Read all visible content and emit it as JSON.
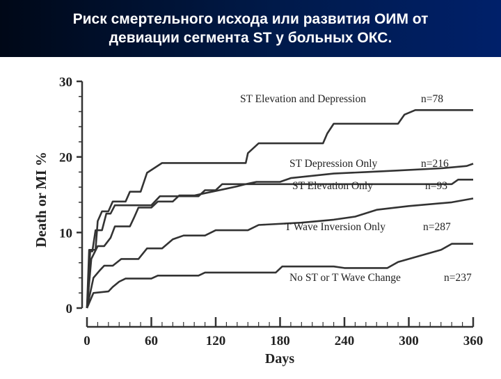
{
  "page": {
    "title_line1": "Риск смертельного исхода или развития ОИМ от",
    "title_line2": "девиации сегмента ST у больных ОКС."
  },
  "colors": {
    "header_bg": "#001a4a",
    "header_text": "#ffffff",
    "line": "#333333"
  },
  "chart_data": {
    "type": "line",
    "title": "",
    "xlabel": "Days",
    "ylabel": "Death or MI %",
    "xlim": [
      0,
      360
    ],
    "ylim": [
      0,
      30
    ],
    "xticks": [
      0,
      60,
      120,
      180,
      240,
      300,
      360
    ],
    "yticks": [
      0,
      10,
      20,
      30
    ],
    "xtick_labels": [
      "0",
      "60",
      "120",
      "180",
      "240",
      "300",
      "360"
    ],
    "ytick_labels": [
      "0",
      "10",
      "20",
      "30"
    ],
    "grid": false,
    "legend": "inline",
    "series": [
      {
        "name": "ST Elevation and Depression",
        "n": "n=78",
        "points": [
          [
            0,
            0
          ],
          [
            2,
            7.7
          ],
          [
            8,
            7.7
          ],
          [
            10,
            11.5
          ],
          [
            14,
            12.8
          ],
          [
            20,
            12.8
          ],
          [
            24,
            14.1
          ],
          [
            36,
            14.1
          ],
          [
            40,
            15.4
          ],
          [
            50,
            15.4
          ],
          [
            56,
            17.9
          ],
          [
            70,
            19.2
          ],
          [
            148,
            19.2
          ],
          [
            150,
            20.5
          ],
          [
            160,
            21.8
          ],
          [
            220,
            21.8
          ],
          [
            224,
            23.1
          ],
          [
            230,
            24.4
          ],
          [
            290,
            24.4
          ],
          [
            296,
            25.6
          ],
          [
            306,
            26.2
          ],
          [
            360,
            26.2
          ]
        ]
      },
      {
        "name": "ST Depression Only",
        "n": "n=216",
        "points": [
          [
            0,
            0
          ],
          [
            4,
            6.5
          ],
          [
            10,
            8.2
          ],
          [
            16,
            8.2
          ],
          [
            22,
            9.3
          ],
          [
            26,
            10.8
          ],
          [
            40,
            10.8
          ],
          [
            44,
            12.0
          ],
          [
            48,
            13.3
          ],
          [
            60,
            13.3
          ],
          [
            66,
            14.1
          ],
          [
            80,
            14.1
          ],
          [
            86,
            14.9
          ],
          [
            100,
            14.9
          ],
          [
            110,
            15.2
          ],
          [
            120,
            15.5
          ],
          [
            130,
            15.8
          ],
          [
            140,
            16.1
          ],
          [
            148,
            16.4
          ],
          [
            158,
            16.7
          ],
          [
            180,
            16.7
          ],
          [
            190,
            17.2
          ],
          [
            210,
            17.5
          ],
          [
            230,
            17.8
          ],
          [
            260,
            18.0
          ],
          [
            290,
            18.2
          ],
          [
            330,
            18.5
          ],
          [
            354,
            18.8
          ],
          [
            360,
            19.1
          ]
        ]
      },
      {
        "name": "ST Elevation Only",
        "n": "n=93",
        "points": [
          [
            0,
            0
          ],
          [
            3,
            7.5
          ],
          [
            5,
            7.5
          ],
          [
            8,
            10.3
          ],
          [
            14,
            10.3
          ],
          [
            18,
            12.5
          ],
          [
            22,
            12.5
          ],
          [
            26,
            13.6
          ],
          [
            60,
            13.6
          ],
          [
            68,
            14.8
          ],
          [
            104,
            14.8
          ],
          [
            110,
            15.6
          ],
          [
            120,
            15.6
          ],
          [
            126,
            16.4
          ],
          [
            340,
            16.4
          ],
          [
            346,
            17.0
          ],
          [
            360,
            17.0
          ]
        ]
      },
      {
        "name": "T Wave Inversion Only",
        "n": "n=287",
        "points": [
          [
            0,
            0
          ],
          [
            6,
            4.0
          ],
          [
            12,
            5.0
          ],
          [
            16,
            5.6
          ],
          [
            24,
            5.6
          ],
          [
            32,
            6.5
          ],
          [
            48,
            6.5
          ],
          [
            56,
            7.9
          ],
          [
            70,
            7.9
          ],
          [
            80,
            9.1
          ],
          [
            90,
            9.6
          ],
          [
            110,
            9.6
          ],
          [
            120,
            10.3
          ],
          [
            150,
            10.3
          ],
          [
            160,
            11.0
          ],
          [
            200,
            11.3
          ],
          [
            230,
            11.7
          ],
          [
            250,
            12.1
          ],
          [
            270,
            13.0
          ],
          [
            300,
            13.5
          ],
          [
            340,
            14.0
          ],
          [
            360,
            14.5
          ]
        ]
      },
      {
        "name": "No ST or T Wave Change",
        "n": "n=237",
        "points": [
          [
            0,
            0
          ],
          [
            6,
            2.0
          ],
          [
            20,
            2.2
          ],
          [
            24,
            2.8
          ],
          [
            30,
            3.5
          ],
          [
            36,
            3.9
          ],
          [
            60,
            3.9
          ],
          [
            66,
            4.3
          ],
          [
            104,
            4.3
          ],
          [
            110,
            4.7
          ],
          [
            176,
            4.7
          ],
          [
            182,
            5.5
          ],
          [
            230,
            5.5
          ],
          [
            240,
            5.3
          ],
          [
            280,
            5.3
          ],
          [
            290,
            6.1
          ],
          [
            310,
            6.9
          ],
          [
            330,
            7.7
          ],
          [
            340,
            8.5
          ],
          [
            360,
            8.5
          ]
        ]
      }
    ]
  }
}
